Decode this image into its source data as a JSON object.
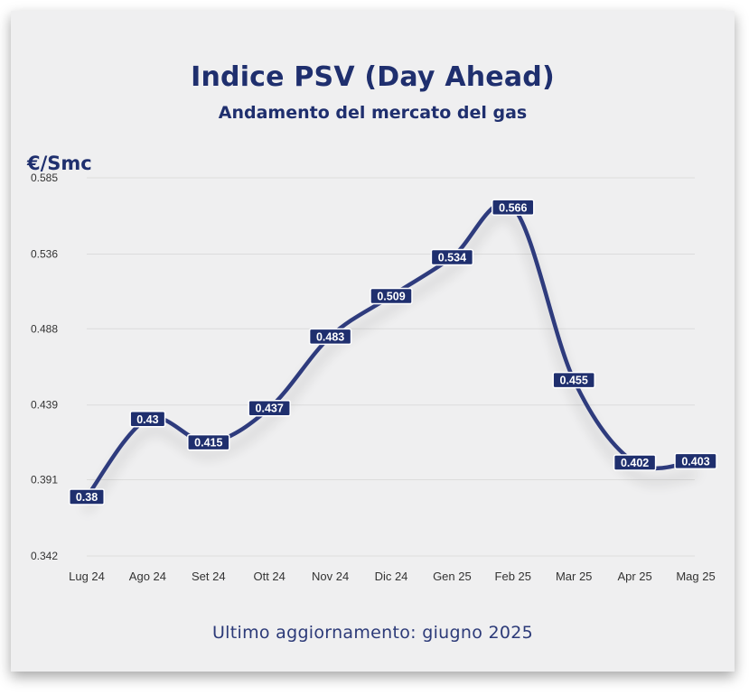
{
  "header": {
    "title": "Indice PSV (Day Ahead)",
    "subtitle": "Andamento del mercato del gas"
  },
  "footer": {
    "text": "Ultimo aggiornamento: giugno 2025"
  },
  "chart_data": {
    "type": "line",
    "title": "Indice PSV (Day Ahead)",
    "subtitle": "Andamento del mercato del gas",
    "ylabel": "€/Smc",
    "xlabel": "",
    "categories": [
      "Lug 24",
      "Ago 24",
      "Set 24",
      "Ott 24",
      "Nov 24",
      "Dic 24",
      "Gen 25",
      "Feb 25",
      "Mar 25",
      "Apr 25",
      "Mag 25"
    ],
    "series": [
      {
        "values": [
          0.38,
          0.43,
          0.415,
          0.437,
          0.483,
          0.509,
          0.534,
          0.566,
          0.455,
          0.402,
          0.403
        ],
        "labels": [
          "0.38",
          "0.43",
          "0.415",
          "0.437",
          "0.483",
          "0.509",
          "0.534",
          "0.566",
          "0.455",
          "0.402",
          "0.403"
        ]
      }
    ],
    "ylim": [
      0.342,
      0.585
    ],
    "yticks": [
      "0.585",
      "0.536",
      "0.488",
      "0.439",
      "0.391",
      "0.342"
    ],
    "grid": true,
    "smooth": true,
    "colors": {
      "line": "#2e3b7d",
      "label_bg": "#1f2f6e",
      "grid": "#dcdcdc"
    }
  }
}
